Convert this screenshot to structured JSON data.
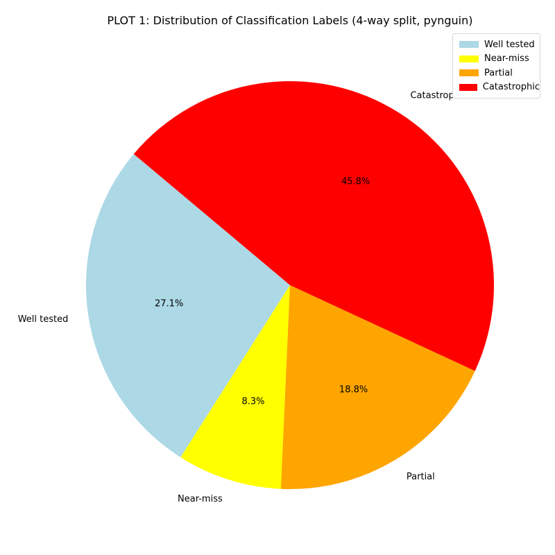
{
  "chart_data": {
    "type": "pie",
    "title": "PLOT 1: Distribution of Classification Labels (4-way split, pynguin)",
    "categories": [
      "Well tested",
      "Near-miss",
      "Partial",
      "Catastrophic"
    ],
    "values": [
      27.1,
      8.3,
      18.8,
      45.8
    ],
    "percent_labels": [
      "27.1%",
      "8.3%",
      "18.8%",
      "45.8%"
    ],
    "colors": [
      "#add8e6",
      "#ffff00",
      "#ffa500",
      "#ff0000"
    ],
    "start_angle_deg": 140,
    "direction": "counterclockwise",
    "legend": {
      "placement": "top-right",
      "entries": [
        "Well tested",
        "Near-miss",
        "Partial",
        "Catastrophic"
      ]
    }
  }
}
